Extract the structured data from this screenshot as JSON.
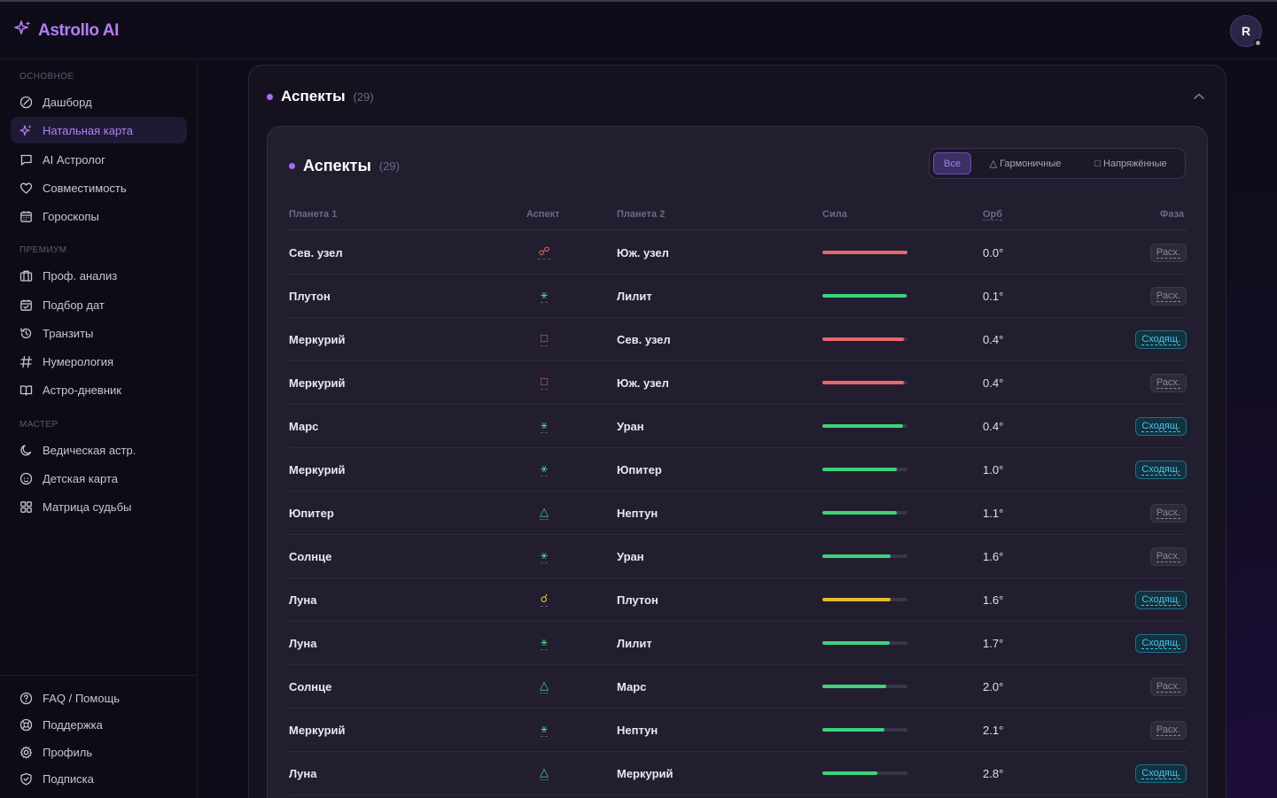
{
  "app": {
    "name": "Astrollo AI"
  },
  "user": {
    "avatar_letter": "R"
  },
  "sidebar": {
    "sections": [
      {
        "label": "ОСНОВНОЕ"
      },
      {
        "label": "ПРЕМИУМ"
      },
      {
        "label": "МАСТЕР"
      }
    ],
    "items": [
      {
        "label": "Дашборд",
        "icon": "dashboard-icon"
      },
      {
        "label": "Натальная карта",
        "icon": "sparkles-icon",
        "active": true
      },
      {
        "label": "AI Астролог",
        "icon": "chat-icon"
      },
      {
        "label": "Совместимость",
        "icon": "heart-icon"
      },
      {
        "label": "Гороскопы",
        "icon": "calendar-icon"
      },
      {
        "label": "Проф. анализ",
        "icon": "briefcase-icon"
      },
      {
        "label": "Подбор дат",
        "icon": "calendar-check-icon"
      },
      {
        "label": "Транзиты",
        "icon": "history-icon"
      },
      {
        "label": "Нумерология",
        "icon": "hash-icon"
      },
      {
        "label": "Астро-дневник",
        "icon": "book-icon"
      },
      {
        "label": "Ведическая астр.",
        "icon": "moon-icon"
      },
      {
        "label": "Детская карта",
        "icon": "baby-icon"
      },
      {
        "label": "Матрица судьбы",
        "icon": "grid-icon"
      }
    ],
    "footer": [
      {
        "label": "FAQ / Помощь",
        "icon": "help-icon"
      },
      {
        "label": "Поддержка",
        "icon": "lifebuoy-icon"
      },
      {
        "label": "Профиль",
        "icon": "gear-icon"
      },
      {
        "label": "Подписка",
        "icon": "shield-icon"
      }
    ]
  },
  "panel": {
    "title": "Аспекты",
    "count": "(29)"
  },
  "aspects": {
    "title": "Аспекты",
    "count": "(29)",
    "filters": [
      {
        "label": "Все",
        "active": true
      },
      {
        "label": "Гармоничные",
        "glyph": "△"
      },
      {
        "label": "Напряжённые",
        "glyph": "□"
      }
    ],
    "columns": [
      "Планета 1",
      "Аспект",
      "Планета 2",
      "Сила",
      "Орб",
      "Фаза"
    ],
    "colors": {
      "red": "#e8686c",
      "green": "#3ed37a",
      "yellow": "#e7b931"
    },
    "rows": [
      {
        "p1": "Сев. узел",
        "aspect": "☍",
        "aspect_color": "red",
        "p2": "Юж. узел",
        "strength": 1.0,
        "orb": "0.0°",
        "phase": "Расх."
      },
      {
        "p1": "Плутон",
        "aspect": "⚹",
        "aspect_color": "green",
        "p2": "Лилит",
        "strength": 0.99,
        "orb": "0.1°",
        "phase": "Расх."
      },
      {
        "p1": "Меркурий",
        "aspect": "□",
        "aspect_color": "red",
        "p2": "Сев. узел",
        "strength": 0.96,
        "orb": "0.4°",
        "phase": "Сходящ."
      },
      {
        "p1": "Меркурий",
        "aspect": "□",
        "aspect_color": "red",
        "p2": "Юж. узел",
        "strength": 0.96,
        "orb": "0.4°",
        "phase": "Расх."
      },
      {
        "p1": "Марс",
        "aspect": "⚹",
        "aspect_color": "green",
        "p2": "Уран",
        "strength": 0.95,
        "orb": "0.4°",
        "phase": "Сходящ."
      },
      {
        "p1": "Меркурий",
        "aspect": "⚹",
        "aspect_color": "green",
        "p2": "Юпитер",
        "strength": 0.88,
        "orb": "1.0°",
        "phase": "Сходящ."
      },
      {
        "p1": "Юпитер",
        "aspect": "△",
        "aspect_color": "green",
        "p2": "Нептун",
        "strength": 0.87,
        "orb": "1.1°",
        "phase": "Расх."
      },
      {
        "p1": "Солнце",
        "aspect": "⚹",
        "aspect_color": "green",
        "p2": "Уран",
        "strength": 0.8,
        "orb": "1.6°",
        "phase": "Расх."
      },
      {
        "p1": "Луна",
        "aspect": "☌",
        "aspect_color": "yellow",
        "p2": "Плутон",
        "strength": 0.8,
        "orb": "1.6°",
        "phase": "Сходящ."
      },
      {
        "p1": "Луна",
        "aspect": "⚹",
        "aspect_color": "green",
        "p2": "Лилит",
        "strength": 0.79,
        "orb": "1.7°",
        "phase": "Сходящ."
      },
      {
        "p1": "Солнце",
        "aspect": "△",
        "aspect_color": "green",
        "p2": "Марс",
        "strength": 0.75,
        "orb": "2.0°",
        "phase": "Расх."
      },
      {
        "p1": "Меркурий",
        "aspect": "⚹",
        "aspect_color": "green",
        "p2": "Нептун",
        "strength": 0.73,
        "orb": "2.1°",
        "phase": "Расх."
      },
      {
        "p1": "Луна",
        "aspect": "△",
        "aspect_color": "green",
        "p2": "Меркурий",
        "strength": 0.65,
        "orb": "2.8°",
        "phase": "Сходящ."
      }
    ]
  }
}
